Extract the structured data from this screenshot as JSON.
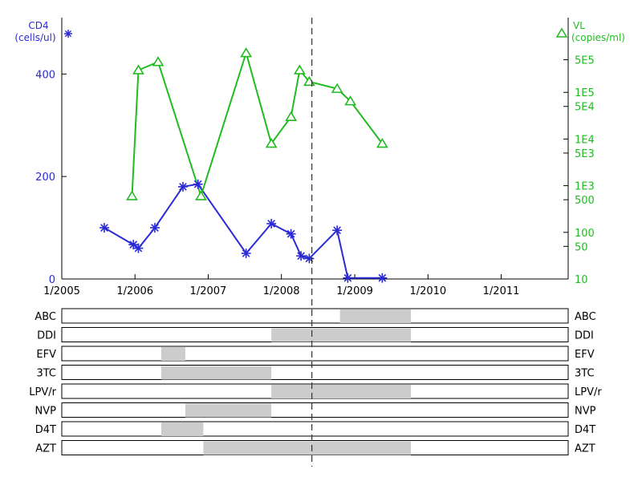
{
  "chart_data": {
    "type": "line",
    "x_ticks": [
      "1/2005",
      "1/2006",
      "1/2007",
      "1/2008",
      "1/2009",
      "1/2010",
      "1/2011"
    ],
    "x_range": [
      "2005-01-01",
      "2011-12-01"
    ],
    "marker_date": "2008-06-01",
    "y_left": {
      "label_line1": "CD4",
      "label_line2": "(cells/ul)",
      "ticks": [
        "0",
        "200",
        "400"
      ],
      "tick_values": [
        0,
        200,
        400
      ],
      "range": [
        0,
        510
      ],
      "color": "#2b2bd4"
    },
    "y_right": {
      "label_line1": "VL",
      "label_line2": "(copies/ml)",
      "scale": "log",
      "ticks": [
        "10",
        "50",
        "100",
        "500",
        "1E3",
        "5E3",
        "1E4",
        "5E4",
        "1E5",
        "5E5"
      ],
      "tick_values": [
        10,
        50,
        100,
        500,
        1000,
        5000,
        10000,
        50000,
        100000,
        500000
      ],
      "range": [
        10,
        4000000
      ],
      "color": "#22bb22"
    },
    "series": [
      {
        "axis": "left",
        "marker": "asterisk",
        "points": [
          {
            "x": "2005-08-01",
            "y": 100
          },
          {
            "x": "2005-12-24",
            "y": 67
          },
          {
            "x": "2006-01-18",
            "y": 60
          },
          {
            "x": "2006-04-10",
            "y": 100
          },
          {
            "x": "2006-08-28",
            "y": 180
          },
          {
            "x": "2006-11-11",
            "y": 185
          },
          {
            "x": "2007-07-09",
            "y": 50
          },
          {
            "x": "2007-11-12",
            "y": 108
          },
          {
            "x": "2008-02-18",
            "y": 88
          },
          {
            "x": "2008-04-08",
            "y": 45
          },
          {
            "x": "2008-05-19",
            "y": 40
          },
          {
            "x": "2008-10-05",
            "y": 95
          },
          {
            "x": "2008-11-27",
            "y": 2
          },
          {
            "x": "2009-05-18",
            "y": 2
          }
        ]
      },
      {
        "axis": "right",
        "marker": "triangle",
        "points": [
          {
            "x": "2005-12-17",
            "y": 600
          },
          {
            "x": "2006-01-18",
            "y": 300000
          },
          {
            "x": "2006-04-26",
            "y": 450000
          },
          {
            "x": "2006-11-26",
            "y": 600
          },
          {
            "x": "2007-07-09",
            "y": 700000
          },
          {
            "x": "2007-11-12",
            "y": 8000
          },
          {
            "x": "2008-02-18",
            "y": 30000
          },
          {
            "x": "2008-04-01",
            "y": 300000
          },
          {
            "x": "2008-05-19",
            "y": 170000
          },
          {
            "x": "2008-10-05",
            "y": 120000
          },
          {
            "x": "2008-12-10",
            "y": 65000
          },
          {
            "x": "2009-05-18",
            "y": 8000
          }
        ]
      }
    ],
    "drugs": [
      {
        "name": "ABC",
        "periods": [
          [
            "2008-10-19",
            "2009-10-08"
          ]
        ]
      },
      {
        "name": "DDI",
        "periods": [
          [
            "2007-11-12",
            "2009-10-08"
          ]
        ]
      },
      {
        "name": "EFV",
        "periods": [
          [
            "2006-05-12",
            "2006-09-09"
          ]
        ]
      },
      {
        "name": "3TC",
        "periods": [
          [
            "2006-05-12",
            "2007-11-12"
          ]
        ]
      },
      {
        "name": "LPV/r",
        "periods": [
          [
            "2007-11-12",
            "2009-10-08"
          ]
        ]
      },
      {
        "name": "NVP",
        "periods": [
          [
            "2006-09-09",
            "2007-11-12"
          ]
        ]
      },
      {
        "name": "D4T",
        "periods": [
          [
            "2006-05-12",
            "2006-12-08"
          ]
        ]
      },
      {
        "name": "AZT",
        "periods": [
          [
            "2006-12-08",
            "2009-10-08"
          ]
        ]
      }
    ]
  }
}
